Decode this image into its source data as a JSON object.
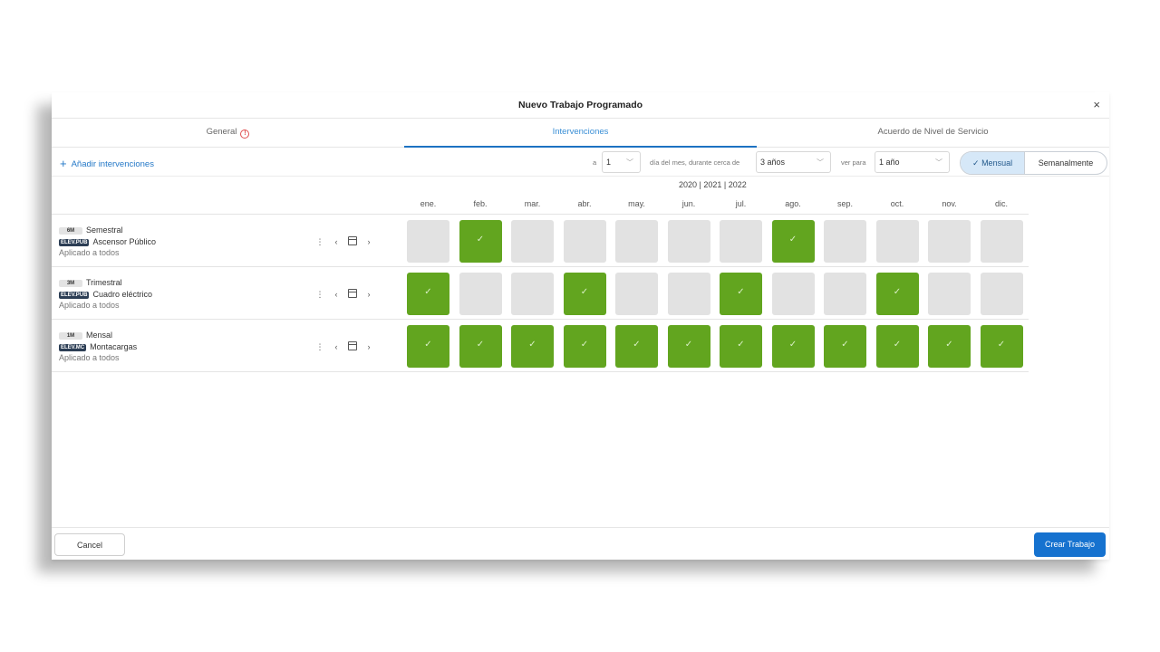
{
  "dialog": {
    "title": "Nuevo Trabajo Programado",
    "close": "×"
  },
  "tabs": [
    {
      "label": "General",
      "has_warning": true
    },
    {
      "label": "Intervenciones",
      "active": true
    },
    {
      "label": "Acuerdo de Nivel de Servicio"
    }
  ],
  "toolbar": {
    "add_label": "Añadir intervenciones",
    "day_prefix": "a",
    "day_value": "1",
    "day_suffix": "día del mes, durante cerca de",
    "duration_value": "3 años",
    "view_label": "ver para",
    "view_value": "1 año",
    "mode_monthly": "Mensual",
    "mode_weekly": "Semanalmente",
    "selected_mode": "Mensual"
  },
  "calendar": {
    "years": "2020 | 2021 | 2022",
    "months": [
      "ene.",
      "feb.",
      "mar.",
      "abr.",
      "may.",
      "jun.",
      "jul.",
      "ago.",
      "sep.",
      "oct.",
      "nov.",
      "dic."
    ]
  },
  "rows": [
    {
      "freq": "6M",
      "name": "Semestral",
      "code": "ELEV.PUB",
      "asset": "Ascensor Público",
      "applied": "Aplicado a todos",
      "active": [
        false,
        true,
        false,
        false,
        false,
        false,
        false,
        true,
        false,
        false,
        false,
        false
      ]
    },
    {
      "freq": "3M",
      "name": "Trimestral",
      "code": "ELEV.PUB",
      "asset": "Cuadro eléctrico",
      "applied": "Aplicado a todos",
      "active": [
        true,
        false,
        false,
        true,
        false,
        false,
        true,
        false,
        false,
        true,
        false,
        false
      ]
    },
    {
      "freq": "1M",
      "name": "Mensal",
      "code": "ELEV.MC",
      "asset": "Montacargas",
      "applied": "Aplicado a todos",
      "active": [
        true,
        true,
        true,
        true,
        true,
        true,
        true,
        true,
        true,
        true,
        true,
        true
      ]
    }
  ],
  "row_actions": {
    "more": "⋮",
    "prev": "‹",
    "next": "›"
  },
  "footer": {
    "cancel_label": "Cancel",
    "create_label": "Crear Trabajo"
  },
  "colors": {
    "accent": "#1672cf",
    "active_cell": "#62a51f",
    "inactive_cell": "#e2e2e2"
  }
}
